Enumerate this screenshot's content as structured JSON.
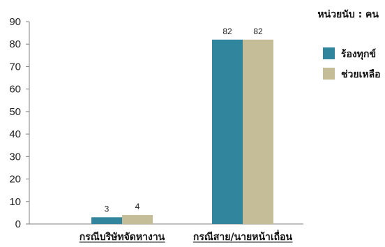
{
  "unit_label": "หน่วยนับ : คน",
  "chart_data": {
    "type": "bar",
    "categories": [
      "กรณีบริษัทจัดหางาน",
      "กรณีสาย/นายหน้าเถื่อน"
    ],
    "series": [
      {
        "name": "ร้องทุกข์",
        "color": "#31859c",
        "values": [
          3,
          82
        ]
      },
      {
        "name": "ช่วยเหลือ",
        "color": "#c4bd97",
        "values": [
          4,
          82
        ]
      }
    ],
    "ylim": [
      0,
      90
    ],
    "yticks": [
      0,
      10,
      20,
      30,
      40,
      50,
      60,
      70,
      80,
      90
    ],
    "grid": false,
    "legend_position": "right",
    "category_labels_underlined": true
  }
}
